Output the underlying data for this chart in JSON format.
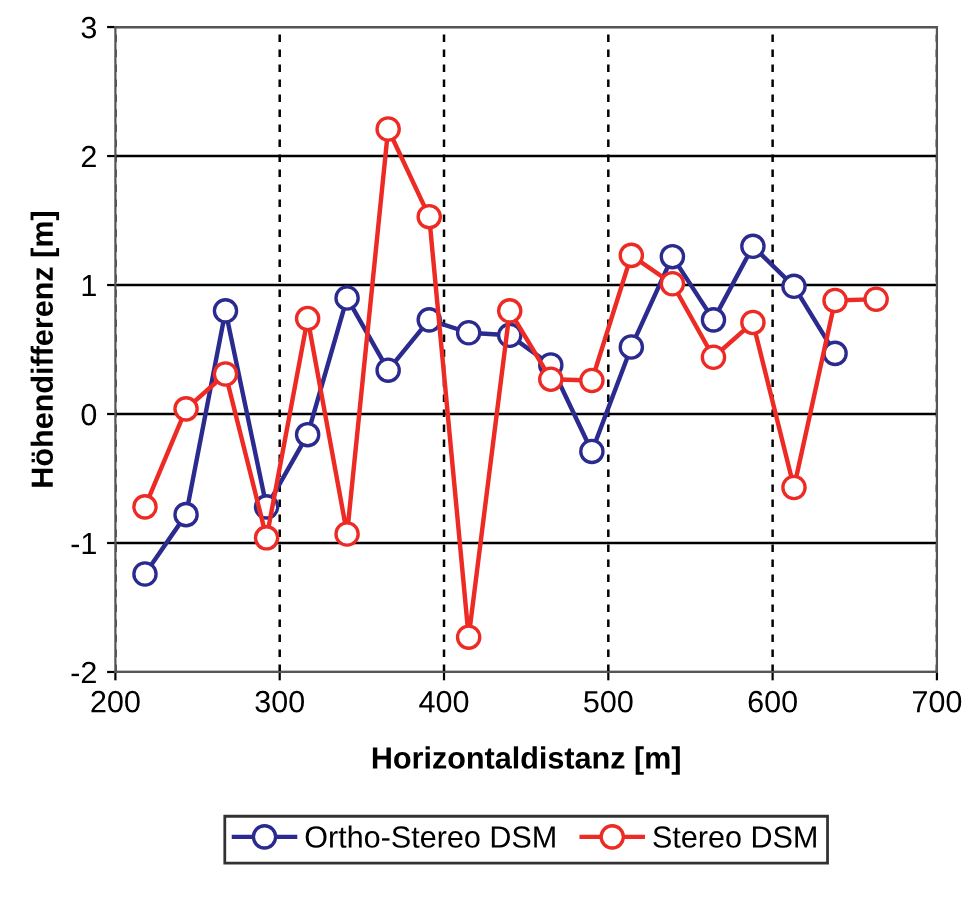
{
  "chart_data": {
    "type": "line",
    "xlabel": "Horizontaldistanz [m]",
    "ylabel": "Höhendifferenz [m]",
    "xlim": [
      200,
      700
    ],
    "xticks": [
      200,
      300,
      400,
      500,
      600,
      700
    ],
    "ylim": [
      -2,
      3
    ],
    "yticks": [
      -2,
      -1,
      0,
      1,
      2,
      3
    ],
    "grid": true,
    "legend": "bottom",
    "marker": "circle",
    "line_style": "solid",
    "series": [
      {
        "name": "Ortho-Stereo DSM",
        "color": "#2b2b8f",
        "x": [
          218,
          243,
          267,
          292,
          317,
          341,
          366,
          391,
          415,
          440,
          465,
          490,
          514,
          539,
          564,
          588,
          613,
          638
        ],
        "values": [
          -1.24,
          -0.78,
          0.8,
          -0.72,
          -0.16,
          0.9,
          0.34,
          0.73,
          0.63,
          0.61,
          0.38,
          -0.29,
          0.52,
          1.22,
          0.73,
          1.3,
          0.99,
          0.47
        ]
      },
      {
        "name": "Stereo DSM",
        "color": "#ee2a24",
        "x": [
          218,
          243,
          267,
          292,
          317,
          341,
          366,
          391,
          415,
          440,
          465,
          490,
          514,
          539,
          564,
          588,
          613,
          638,
          663
        ],
        "values": [
          -0.72,
          0.04,
          0.31,
          -0.96,
          0.74,
          -0.93,
          2.21,
          1.53,
          -1.73,
          0.8,
          0.27,
          0.26,
          1.23,
          1.01,
          0.44,
          0.71,
          -0.57,
          0.88,
          0.89
        ]
      }
    ]
  }
}
